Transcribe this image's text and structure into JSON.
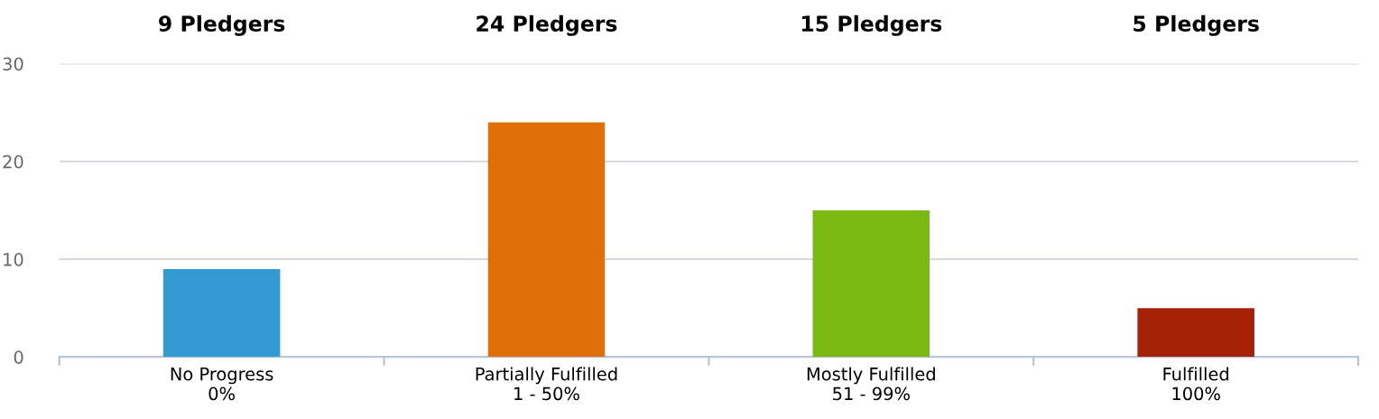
{
  "chart_data": {
    "type": "bar",
    "categories": [
      "No Progress\n0%",
      "Partially Fulfilled\n1 - 50%",
      "Mostly Fulfilled\n51 - 99%",
      "Fulfilled\n100%"
    ],
    "values": [
      9,
      24,
      15,
      5
    ],
    "colors": [
      "#339bd1",
      "#e07005",
      "#7ab812",
      "#a52004"
    ],
    "value_labels": [
      "9 Pledgers",
      "24 Pledgers",
      "15 Pledgers",
      "5 Pledgers"
    ],
    "ylim": [
      0,
      30
    ],
    "yticks": [
      0,
      10,
      20,
      30
    ],
    "grid": "y",
    "legend": false
  }
}
